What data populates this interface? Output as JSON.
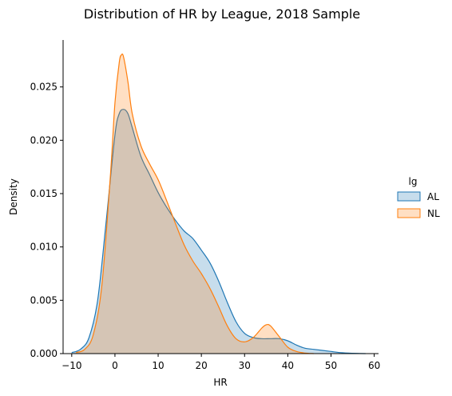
{
  "chart_data": {
    "type": "area",
    "title": "Distribution of HR by League, 2018 Sample",
    "xlabel": "HR",
    "ylabel": "Density",
    "xlim": [
      -12,
      61
    ],
    "ylim": [
      0,
      0.0294
    ],
    "x_ticks": [
      -10,
      0,
      10,
      20,
      30,
      40,
      50,
      60
    ],
    "x_tick_labels": [
      "−10",
      "0",
      "10",
      "20",
      "30",
      "40",
      "50",
      "60"
    ],
    "y_ticks": [
      0,
      0.005,
      0.01,
      0.015,
      0.02,
      0.025
    ],
    "y_tick_labels": [
      "0.000",
      "0.005",
      "0.010",
      "0.015",
      "0.020",
      "0.025"
    ],
    "grid": false,
    "legend": {
      "title": "lg",
      "placement": "right"
    },
    "series": [
      {
        "name": "AL",
        "color": "#1f77b4",
        "x": [
          -10,
          -8,
          -6,
          -4,
          -2,
          0,
          1,
          2,
          3,
          4,
          6,
          8,
          10,
          12,
          14,
          16,
          18,
          20,
          22,
          24,
          26,
          28,
          30,
          32,
          34,
          36,
          38,
          40,
          42,
          44,
          46,
          48,
          50,
          52,
          54,
          56,
          58
        ],
        "y": [
          0.0001,
          0.0004,
          0.0015,
          0.005,
          0.0125,
          0.0205,
          0.0225,
          0.0229,
          0.0225,
          0.0212,
          0.0185,
          0.0168,
          0.0151,
          0.0137,
          0.0125,
          0.0115,
          0.0108,
          0.0097,
          0.0085,
          0.0068,
          0.0048,
          0.003,
          0.0019,
          0.0015,
          0.0014,
          0.0014,
          0.0014,
          0.0012,
          0.0008,
          0.0005,
          0.0004,
          0.0003,
          0.0002,
          0.0001,
          5e-05,
          2e-05,
          0.0
        ]
      },
      {
        "name": "NL",
        "color": "#ff7f0e",
        "x": [
          -9,
          -7,
          -5,
          -3,
          -1,
          0,
          1,
          1.5,
          2,
          3,
          4,
          6,
          8,
          10,
          12,
          14,
          16,
          18,
          20,
          22,
          24,
          26,
          28,
          30,
          32,
          34,
          35,
          36,
          38,
          40,
          42,
          44,
          46
        ],
        "y": [
          0.0001,
          0.0004,
          0.0018,
          0.0065,
          0.017,
          0.0235,
          0.0273,
          0.028,
          0.0278,
          0.0255,
          0.0225,
          0.0195,
          0.0178,
          0.0163,
          0.0143,
          0.0122,
          0.0102,
          0.0087,
          0.0075,
          0.0061,
          0.0044,
          0.0026,
          0.0014,
          0.0011,
          0.0015,
          0.0024,
          0.0027,
          0.0026,
          0.0016,
          0.0006,
          0.0002,
          5e-05,
          0.0
        ]
      }
    ]
  }
}
